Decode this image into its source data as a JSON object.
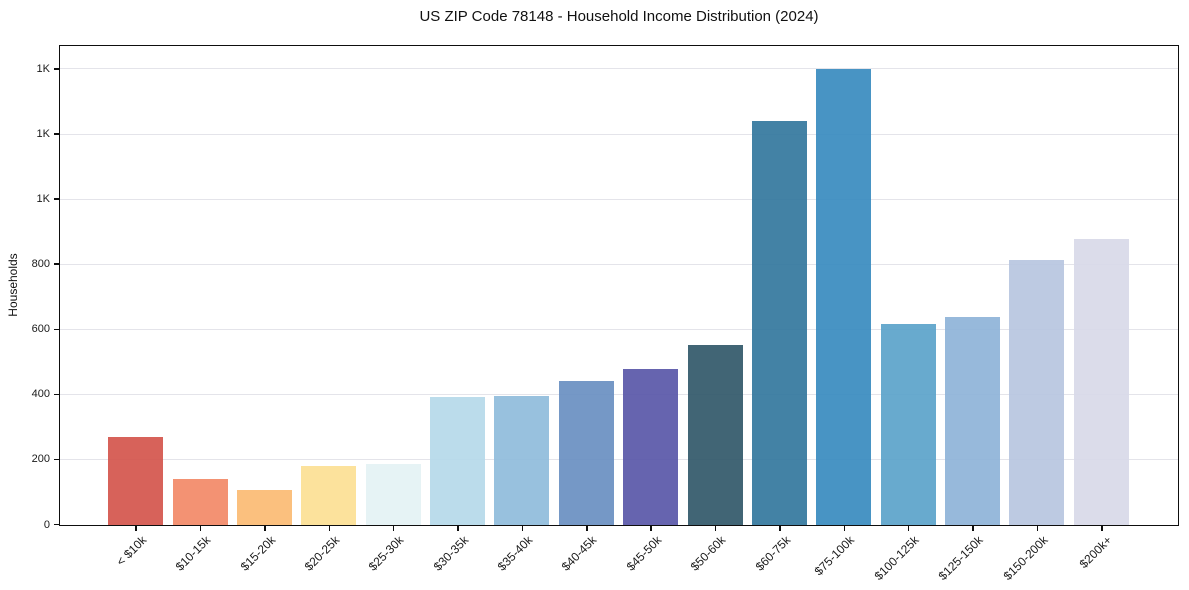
{
  "chart_data": {
    "type": "bar",
    "title": "US ZIP Code 78148 - Household Income Distribution (2024)",
    "xlabel": "",
    "ylabel": "Households",
    "categories": [
      "< $10k",
      "$10-15k",
      "$15-20k",
      "$20-25k",
      "$25-30k",
      "$30-35k",
      "$35-40k",
      "$40-45k",
      "$45-50k",
      "$50-60k",
      "$60-75k",
      "$75-100k",
      "$100-125k",
      "$125-150k",
      "$150-200k",
      "$200k+"
    ],
    "values": [
      270,
      141,
      107,
      181,
      188,
      392,
      396,
      444,
      479,
      553,
      1243,
      1401,
      617,
      639,
      814,
      879
    ],
    "bar_colors": [
      "#d4564e",
      "#f28a68",
      "#fbbb74",
      "#fce094",
      "#e4f2f4",
      "#b6d9e9",
      "#90bcdc",
      "#6a90c2",
      "#5a58a9",
      "#33596a",
      "#35799e",
      "#3a8cc0",
      "#5ca4ca",
      "#8fb4d8",
      "#b8c6e0",
      "#d8d9e8"
    ],
    "ylim": [
      0,
      1469
    ],
    "yticks": [
      0,
      200,
      400,
      600,
      800,
      1000,
      1200,
      1400
    ],
    "ytick_labels": [
      "0",
      "200",
      "400",
      "600",
      "800",
      "1K",
      "1K",
      "1K"
    ],
    "grid": "horizontal",
    "legend": "none",
    "background_color": "#ffffff",
    "grid_color": "#e4e4ea",
    "spine_color": "#0e0e0e",
    "tick_label_color": "#1a1a1a"
  }
}
